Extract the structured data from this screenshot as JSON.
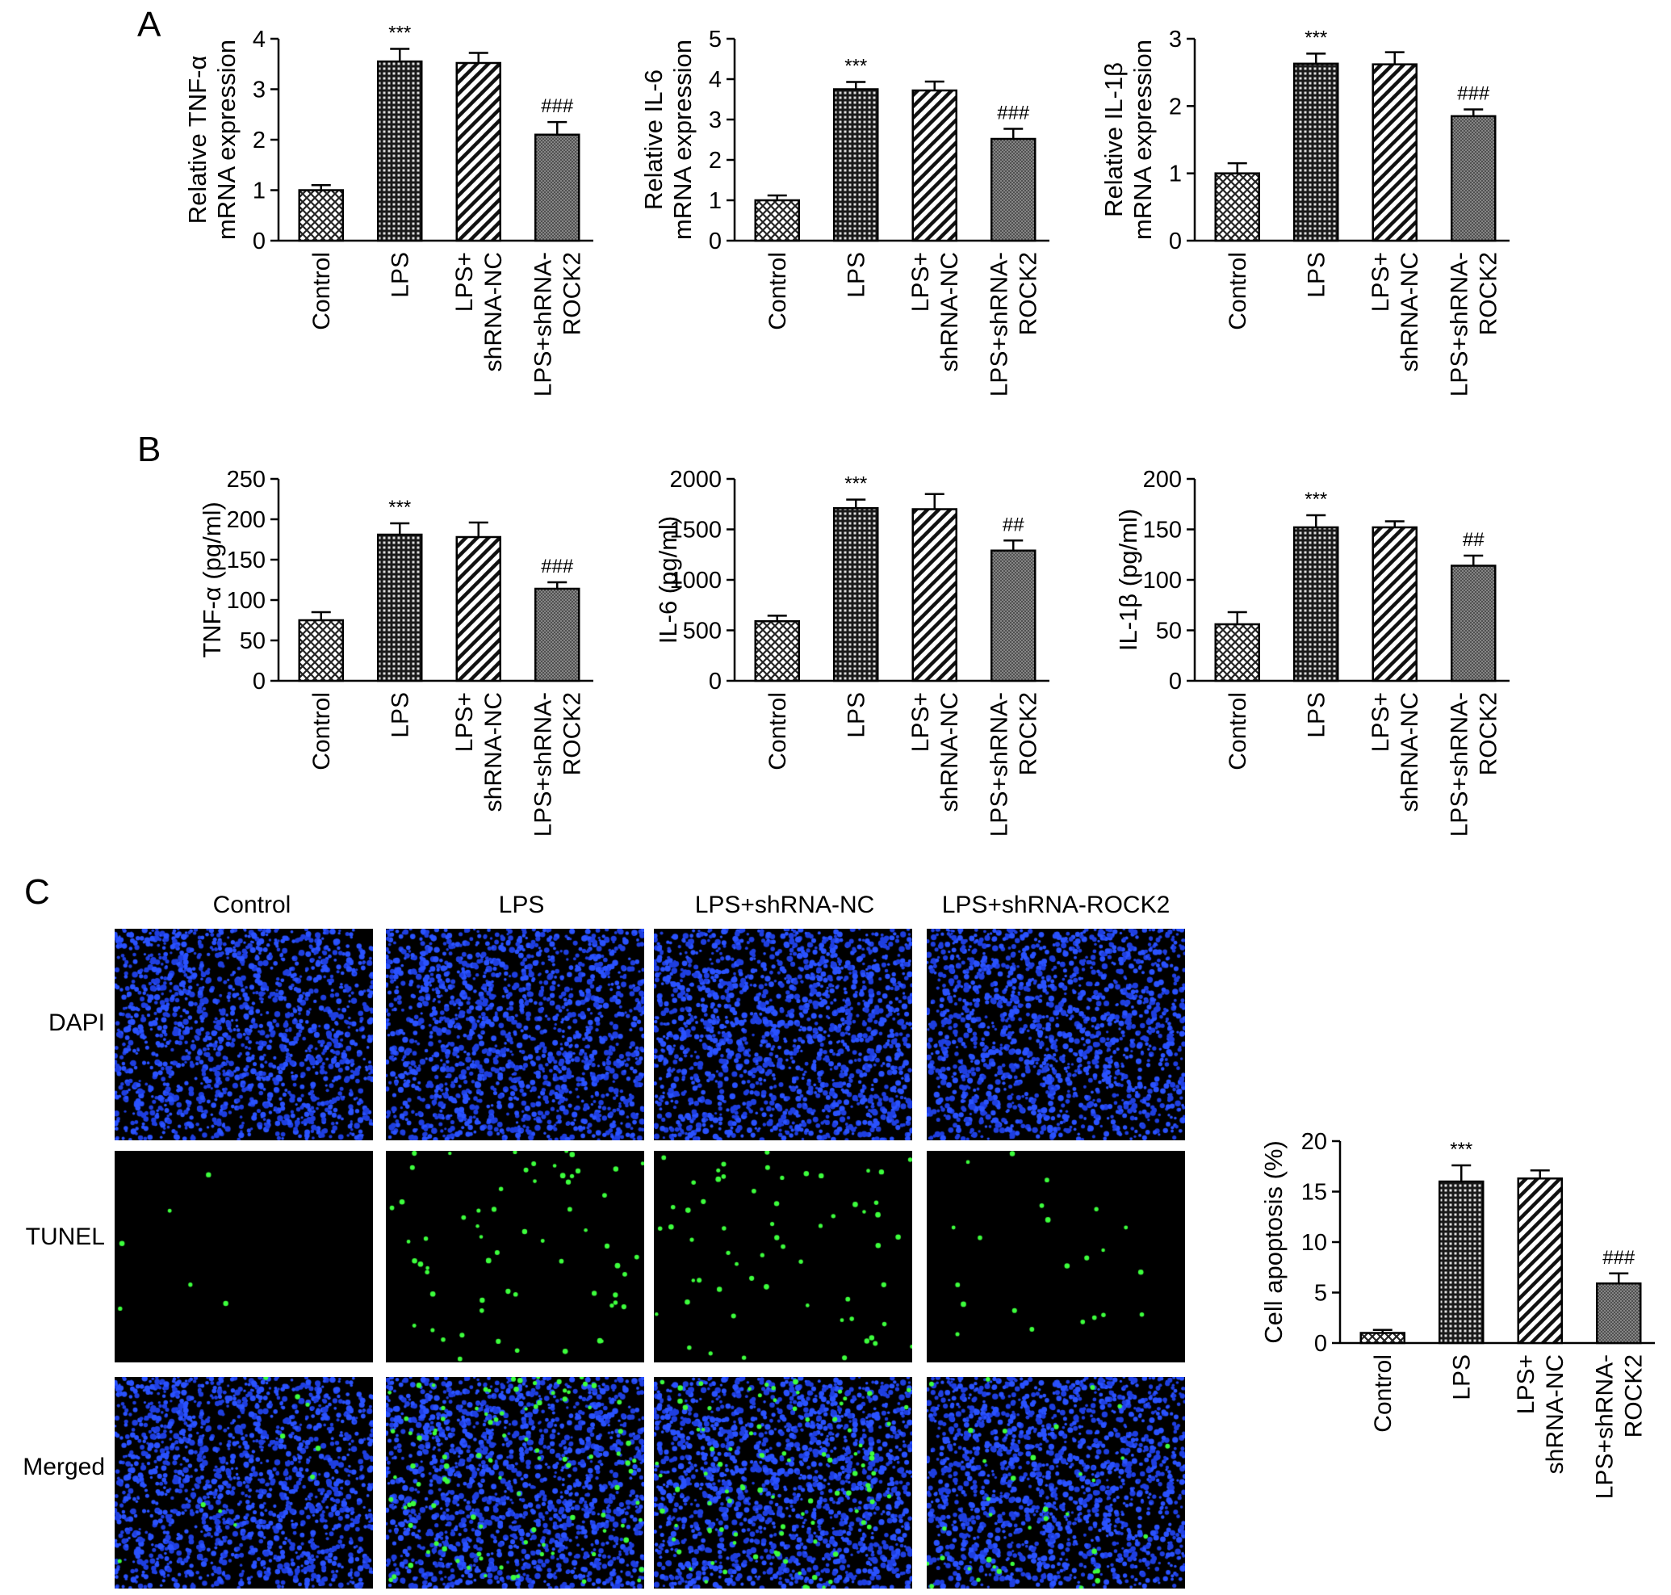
{
  "panels": {
    "A": "A",
    "B": "B",
    "C": "C"
  },
  "colors": {
    "control_fill": "#f2f2f2",
    "lps_fill": "#3a3a3a",
    "nc_fill": "#ffffff",
    "rock2_fill": "#8a8a8a",
    "dapi_blue": "#1f3fe0",
    "tunel_green": "#3dff3d"
  },
  "microscopy": {
    "columns": [
      "Control",
      "LPS",
      "LPS+shRNA-NC",
      "LPS+shRNA-ROCK2"
    ],
    "rows": [
      "DAPI",
      "TUNEL",
      "Merged"
    ],
    "tunel_density": [
      6,
      62,
      60,
      22
    ]
  },
  "chart_data": [
    {
      "id": "tnf-mrna",
      "type": "bar",
      "categories": [
        [
          "Control"
        ],
        [
          "LPS"
        ],
        [
          "LPS+",
          "shRNA-NC"
        ],
        [
          "LPS+shRNA-",
          "ROCK2"
        ]
      ],
      "values": [
        1.0,
        3.55,
        3.52,
        2.1
      ],
      "errors": [
        0.1,
        0.25,
        0.2,
        0.25
      ],
      "annotations": [
        "",
        "***",
        "",
        "###"
      ],
      "ylabel": [
        "Relative TNF-α",
        "mRNA expression"
      ],
      "ylim": [
        0,
        4
      ],
      "yticks": [
        0,
        1,
        2,
        3,
        4
      ]
    },
    {
      "id": "il6-mrna",
      "type": "bar",
      "categories": [
        [
          "Control"
        ],
        [
          "LPS"
        ],
        [
          "LPS+",
          "shRNA-NC"
        ],
        [
          "LPS+shRNA-",
          "ROCK2"
        ]
      ],
      "values": [
        1.0,
        3.75,
        3.72,
        2.52
      ],
      "errors": [
        0.12,
        0.18,
        0.22,
        0.25
      ],
      "annotations": [
        "",
        "***",
        "",
        "###"
      ],
      "ylabel": [
        "Relative IL-6",
        "mRNA expression"
      ],
      "ylim": [
        0,
        5
      ],
      "yticks": [
        0,
        1,
        2,
        3,
        4,
        5
      ]
    },
    {
      "id": "il1b-mrna",
      "type": "bar",
      "categories": [
        [
          "Control"
        ],
        [
          "LPS"
        ],
        [
          "LPS+",
          "shRNA-NC"
        ],
        [
          "LPS+shRNA-",
          "ROCK2"
        ]
      ],
      "values": [
        1.0,
        2.63,
        2.62,
        1.85
      ],
      "errors": [
        0.15,
        0.15,
        0.18,
        0.1
      ],
      "annotations": [
        "",
        "***",
        "",
        "###"
      ],
      "ylabel": [
        "Relative IL-1β",
        "mRNA expression"
      ],
      "ylim": [
        0,
        3
      ],
      "yticks": [
        0,
        1,
        2,
        3
      ]
    },
    {
      "id": "tnf-elisa",
      "type": "bar",
      "categories": [
        [
          "Control"
        ],
        [
          "LPS"
        ],
        [
          "LPS+",
          "shRNA-NC"
        ],
        [
          "LPS+shRNA-",
          "ROCK2"
        ]
      ],
      "values": [
        75,
        181,
        178,
        114
      ],
      "errors": [
        10,
        14,
        18,
        8
      ],
      "annotations": [
        "",
        "***",
        "",
        "###"
      ],
      "ylabel": [
        "TNF-α (pg/ml)"
      ],
      "ylim": [
        0,
        250
      ],
      "yticks": [
        0,
        50,
        100,
        150,
        200,
        250
      ]
    },
    {
      "id": "il6-elisa",
      "type": "bar",
      "categories": [
        [
          "Control"
        ],
        [
          "LPS"
        ],
        [
          "LPS+",
          "shRNA-NC"
        ],
        [
          "LPS+shRNA-",
          "ROCK2"
        ]
      ],
      "values": [
        590,
        1710,
        1700,
        1290
      ],
      "errors": [
        55,
        85,
        150,
        100
      ],
      "annotations": [
        "",
        "***",
        "",
        "##"
      ],
      "ylabel": [
        "IL-6 (pg/ml)"
      ],
      "ylim": [
        0,
        2000
      ],
      "yticks": [
        0,
        500,
        1000,
        1500,
        2000
      ]
    },
    {
      "id": "il1b-elisa",
      "type": "bar",
      "categories": [
        [
          "Control"
        ],
        [
          "LPS"
        ],
        [
          "LPS+",
          "shRNA-NC"
        ],
        [
          "LPS+shRNA-",
          "ROCK2"
        ]
      ],
      "values": [
        56,
        152,
        152,
        114
      ],
      "errors": [
        12,
        12,
        6,
        10
      ],
      "annotations": [
        "",
        "***",
        "",
        "##"
      ],
      "ylabel": [
        "IL-1β (pg/ml)"
      ],
      "ylim": [
        0,
        200
      ],
      "yticks": [
        0,
        50,
        100,
        150,
        200
      ]
    },
    {
      "id": "apoptosis",
      "type": "bar",
      "categories": [
        [
          "Control"
        ],
        [
          "LPS"
        ],
        [
          "LPS+",
          "shRNA-NC"
        ],
        [
          "LPS+shRNA-",
          "ROCK2"
        ]
      ],
      "values": [
        1.0,
        16.0,
        16.3,
        5.9
      ],
      "errors": [
        0.3,
        1.6,
        0.8,
        1.0
      ],
      "annotations": [
        "",
        "***",
        "",
        "###"
      ],
      "ylabel": [
        "Cell apoptosis (%)"
      ],
      "ylim": [
        0,
        20
      ],
      "yticks": [
        0,
        5,
        10,
        15,
        20
      ]
    }
  ]
}
